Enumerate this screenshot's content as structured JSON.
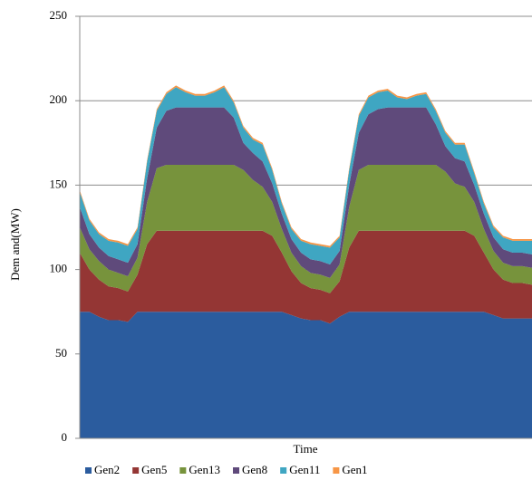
{
  "chart_data": {
    "type": "stacked-area",
    "xlabel": "Time",
    "ylabel": "Dem and(MW)",
    "ylim": [
      0,
      250
    ],
    "yticks": [
      0,
      50,
      100,
      150,
      200,
      250
    ],
    "grid": true,
    "series": [
      {
        "name": "Gen2",
        "color": "#2b5c9e",
        "values": [
          75,
          75,
          72,
          70,
          70,
          69,
          75,
          75,
          75,
          75,
          75,
          75,
          75,
          75,
          75,
          75,
          75,
          75,
          75,
          75,
          75,
          75,
          73,
          71,
          70,
          70,
          68,
          72,
          75,
          75,
          75,
          75,
          75,
          75,
          75,
          75,
          75,
          75,
          75,
          75,
          75,
          75,
          75,
          73,
          71,
          71,
          71,
          71
        ]
      },
      {
        "name": "Gen5",
        "color": "#943634",
        "values": [
          35,
          25,
          22,
          20,
          19,
          18,
          22,
          40,
          48,
          48,
          48,
          48,
          48,
          48,
          48,
          48,
          48,
          48,
          48,
          48,
          45,
          35,
          26,
          21,
          19,
          18,
          18,
          21,
          38,
          48,
          48,
          48,
          48,
          48,
          48,
          48,
          48,
          48,
          48,
          48,
          48,
          45,
          35,
          27,
          23,
          21,
          21,
          20
        ]
      },
      {
        "name": "Gen13",
        "color": "#77933c",
        "values": [
          15,
          12,
          11,
          10,
          9,
          9,
          10,
          25,
          37,
          39,
          39,
          39,
          39,
          39,
          39,
          39,
          39,
          36,
          30,
          26,
          20,
          14,
          11,
          10,
          9,
          9,
          9,
          10,
          24,
          36,
          39,
          39,
          39,
          39,
          39,
          39,
          39,
          39,
          35,
          28,
          26,
          20,
          14,
          11,
          10,
          10,
          10,
          10
        ]
      },
      {
        "name": "Gen8",
        "color": "#5f4a7b",
        "values": [
          12,
          9,
          8,
          8,
          8,
          8,
          8,
          14,
          24,
          32,
          34,
          34,
          34,
          34,
          34,
          34,
          28,
          16,
          16,
          15,
          11,
          9,
          8,
          8,
          8,
          8,
          8,
          8,
          13,
          22,
          30,
          33,
          34,
          34,
          34,
          34,
          34,
          24,
          15,
          15,
          15,
          10,
          9,
          8,
          8,
          8,
          8,
          8
        ]
      },
      {
        "name": "Gen11",
        "color": "#3fa6c2",
        "values": [
          9,
          8,
          8,
          9,
          10,
          10,
          9,
          10,
          10,
          10,
          12,
          9,
          7,
          7,
          9,
          12,
          9,
          9,
          8,
          10,
          8,
          6,
          6,
          7,
          9,
          9,
          10,
          8,
          9,
          10,
          10,
          10,
          10,
          6,
          5,
          7,
          8,
          8,
          8,
          8,
          10,
          7,
          6,
          6,
          7,
          7,
          7,
          8
        ]
      },
      {
        "name": "Gen1",
        "color": "#f79646",
        "values": [
          1,
          1,
          1,
          1,
          1,
          1,
          1,
          1,
          1,
          1,
          1,
          1,
          1,
          1,
          1,
          1,
          1,
          1,
          1,
          1,
          1,
          1,
          1,
          1,
          1,
          1,
          1,
          1,
          1,
          1,
          1,
          1,
          1,
          1,
          1,
          1,
          1,
          1,
          1,
          1,
          1,
          1,
          1,
          1,
          1,
          1,
          1,
          1
        ]
      }
    ]
  }
}
